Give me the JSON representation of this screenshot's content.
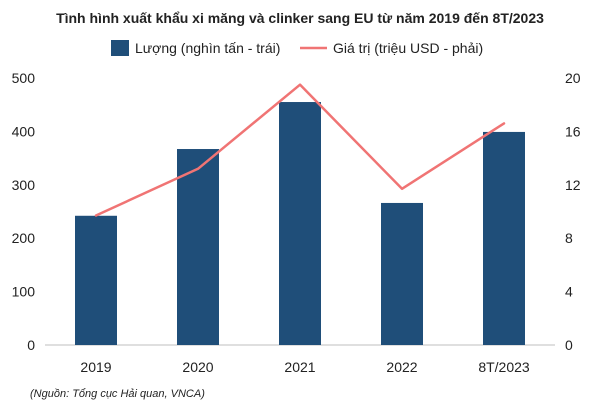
{
  "chart_data": {
    "type": "bar+line",
    "title": "Tình hình xuất khẩu xi măng và clinker sang EU từ năm 2019 đến 8T/2023",
    "categories": [
      "2019",
      "2020",
      "2021",
      "2022",
      "8T/2023"
    ],
    "series": [
      {
        "name": "Lượng  (nghìn tấn - trái)",
        "type": "bar",
        "axis": "left",
        "color": "#1f4e79",
        "values": [
          242,
          367,
          455,
          266,
          399
        ]
      },
      {
        "name": "Giá trị (triệu USD - phải)",
        "type": "line",
        "axis": "right",
        "color": "#f07474",
        "values": [
          9.7,
          13.2,
          19.5,
          11.7,
          16.6
        ]
      }
    ],
    "left_axis": {
      "ylim": [
        0,
        500
      ],
      "ticks": [
        0,
        100,
        200,
        300,
        400,
        500
      ]
    },
    "right_axis": {
      "ylim": [
        0,
        20
      ],
      "ticks": [
        0,
        4,
        8,
        12,
        16,
        20
      ]
    },
    "grid": false,
    "legend_position": "top"
  },
  "source": "(Nguồn: Tổng cục Hải quan, VNCA)"
}
